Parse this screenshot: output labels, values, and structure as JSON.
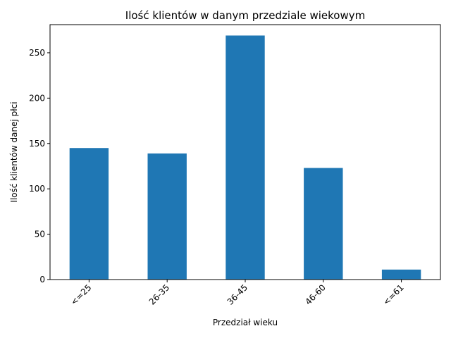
{
  "chart_data": {
    "type": "bar",
    "title": "Ilość klientów w danym przedziale wiekowym",
    "xlabel": "Przedział wieku",
    "ylabel": "Ilość klientów danej płci",
    "categories": [
      "<=25",
      "26-35",
      "36-45",
      "46-60",
      "<=61"
    ],
    "values": [
      145,
      139,
      269,
      123,
      11
    ],
    "ylim": [
      0,
      281
    ],
    "yticks": [
      0,
      50,
      100,
      150,
      200,
      250
    ],
    "grid": false,
    "legend": "none",
    "colors": {
      "bar": "#1f77b4"
    }
  }
}
